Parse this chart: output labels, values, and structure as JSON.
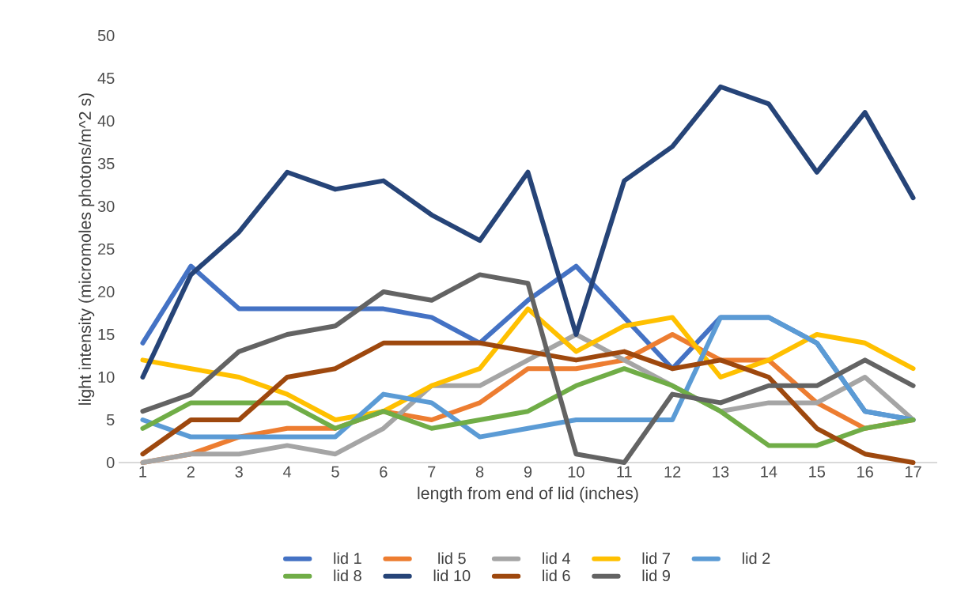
{
  "chart_data": {
    "type": "line",
    "xlabel": "length from end of lid (inches)",
    "ylabel": "light intensity (micromoles photons/m^2 s)",
    "categories": [
      "1",
      "2",
      "3",
      "4",
      "5",
      "6",
      "7",
      "8",
      "9",
      "10",
      "11",
      "12",
      "13",
      "14",
      "15",
      "16",
      "17"
    ],
    "ylim": [
      0,
      50
    ],
    "yticks": [
      0,
      5,
      10,
      15,
      20,
      25,
      30,
      35,
      40,
      45,
      50
    ],
    "legend": "bottom",
    "series": [
      {
        "name": "lid 1",
        "color": "#4472c4",
        "values": [
          14,
          23,
          18,
          18,
          18,
          18,
          17,
          14,
          19,
          23,
          17,
          11,
          17,
          17,
          14,
          6,
          5
        ]
      },
      {
        "name": "lid 5",
        "color": "#ed7d31",
        "values": [
          0,
          1,
          3,
          4,
          4,
          6,
          5,
          7,
          11,
          11,
          12,
          15,
          12,
          12,
          7,
          4,
          5
        ]
      },
      {
        "name": "lid 4",
        "color": "#a5a5a5",
        "values": [
          0,
          1,
          1,
          2,
          1,
          4,
          9,
          9,
          12,
          15,
          12,
          9,
          6,
          7,
          7,
          10,
          5
        ]
      },
      {
        "name": "lid 7",
        "color": "#ffc000",
        "values": [
          12,
          11,
          10,
          8,
          5,
          6,
          9,
          11,
          18,
          13,
          16,
          17,
          10,
          12,
          15,
          14,
          11
        ]
      },
      {
        "name": "lid 2",
        "color": "#5b9bd5",
        "values": [
          5,
          3,
          3,
          3,
          3,
          8,
          7,
          3,
          4,
          5,
          5,
          5,
          17,
          17,
          14,
          6,
          5
        ]
      },
      {
        "name": "lid 8",
        "color": "#70ad47",
        "values": [
          4,
          7,
          7,
          7,
          4,
          6,
          4,
          5,
          6,
          9,
          11,
          9,
          6,
          2,
          2,
          4,
          5
        ]
      },
      {
        "name": "lid 10",
        "color": "#264478",
        "values": [
          10,
          22,
          27,
          34,
          32,
          33,
          29,
          26,
          34,
          15,
          33,
          37,
          44,
          42,
          34,
          41,
          31
        ]
      },
      {
        "name": "lid 6",
        "color": "#9e480e",
        "values": [
          1,
          5,
          5,
          10,
          11,
          14,
          14,
          14,
          13,
          12,
          13,
          11,
          12,
          10,
          4,
          1,
          0
        ]
      },
      {
        "name": "lid 9",
        "color": "#636363",
        "values": [
          6,
          8,
          13,
          15,
          16,
          20,
          19,
          22,
          21,
          1,
          0,
          8,
          7,
          9,
          9,
          12,
          9
        ]
      }
    ]
  }
}
